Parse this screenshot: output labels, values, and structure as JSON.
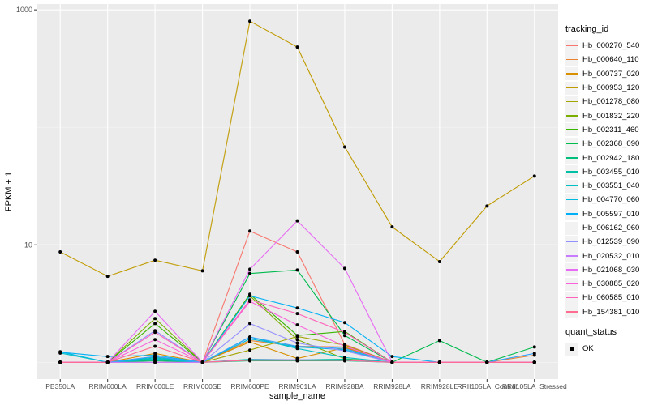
{
  "chart_data": {
    "type": "line",
    "xlabel": "sample_name",
    "ylabel": "FPKM + 1",
    "yscale": "log10",
    "ylim": [
      0.72,
      1120
    ],
    "yticks": [
      10,
      1000
    ],
    "ytick_labels": [
      "10",
      "1000"
    ],
    "grid": true,
    "legend_placement": "right",
    "categories": [
      "PB350LA",
      "RRIM600LA",
      "RRIM600LE",
      "RRIM600SE",
      "RRIM600PE",
      "RRIM901LA",
      "RRIM928BA",
      "RRIM928LA",
      "RRIM928LE",
      "RRII105LA_Control",
      "RRII105LA_Stressed"
    ],
    "legend_title": "tracking_id",
    "series": [
      {
        "name": "Hb_000270_540",
        "color": "#F8766D",
        "values": [
          1,
          1,
          1,
          1,
          13.1,
          8.7,
          1.42,
          1,
          1,
          1,
          1
        ]
      },
      {
        "name": "Hb_000640_110",
        "color": "#EA8331",
        "values": [
          1,
          1,
          1.12,
          1,
          1.53,
          1.37,
          1.35,
          1,
          1,
          1,
          1.15
        ]
      },
      {
        "name": "Hb_000737_020",
        "color": "#D89000",
        "values": [
          1,
          1,
          1.19,
          1,
          1.49,
          1.08,
          1.33,
          1,
          1,
          1,
          1
        ]
      },
      {
        "name": "Hb_000953_120",
        "color": "#C09B00",
        "values": [
          8.7,
          5.4,
          7.4,
          6.0,
          800,
          482,
          68,
          14.2,
          7.2,
          21.4,
          38.5
        ]
      },
      {
        "name": "Hb_001278_080",
        "color": "#A3A500",
        "values": [
          1,
          1,
          1.05,
          1,
          1.27,
          1.66,
          1.4,
          1,
          1,
          1,
          1
        ]
      },
      {
        "name": "Hb_001832_220",
        "color": "#7CAE00",
        "values": [
          1,
          1,
          2.36,
          1,
          3.68,
          1.56,
          1.07,
          1,
          1,
          1,
          1
        ]
      },
      {
        "name": "Hb_002311_460",
        "color": "#39B600",
        "values": [
          1,
          1,
          2.14,
          1,
          3.8,
          1.69,
          1.83,
          1,
          1,
          1,
          1
        ]
      },
      {
        "name": "Hb_002368_090",
        "color": "#00BB4E",
        "values": [
          1,
          1,
          1.05,
          1,
          5.7,
          6.1,
          1.69,
          1,
          1.53,
          1,
          1.35
        ]
      },
      {
        "name": "Hb_002942_180",
        "color": "#00BF7D",
        "values": [
          1,
          1,
          1.03,
          1,
          1.03,
          1.03,
          1.03,
          1,
          1,
          1,
          1
        ]
      },
      {
        "name": "Hb_003455_010",
        "color": "#00C1A3",
        "values": [
          1,
          1,
          1.08,
          1,
          1.06,
          1.05,
          1.06,
          1,
          1,
          1,
          1
        ]
      },
      {
        "name": "Hb_003551_040",
        "color": "#00BFC4",
        "values": [
          1.2,
          1,
          1.1,
          1,
          1.64,
          1.31,
          1.1,
          1,
          1,
          1,
          1
        ]
      },
      {
        "name": "Hb_004770_060",
        "color": "#00BAE0",
        "values": [
          1.23,
          1,
          1.06,
          1,
          1.58,
          1.35,
          1.28,
          1,
          1,
          1,
          1
        ]
      },
      {
        "name": "Hb_005597_010",
        "color": "#00B0F6",
        "values": [
          1.22,
          1.12,
          1.15,
          1,
          3.68,
          2.9,
          2.18,
          1.12,
          1,
          1,
          1
        ]
      },
      {
        "name": "Hb_006162_060",
        "color": "#35A2FF",
        "values": [
          1,
          1,
          1.12,
          1,
          1.64,
          1.37,
          1.31,
          1,
          1,
          1,
          1.19
        ]
      },
      {
        "name": "Hb_012539_090",
        "color": "#9590FF",
        "values": [
          1,
          1,
          1.86,
          1,
          2.14,
          1.46,
          1.25,
          1,
          1,
          1,
          1
        ]
      },
      {
        "name": "Hb_020532_010",
        "color": "#C77CFF",
        "values": [
          1,
          1,
          1,
          1,
          1.05,
          1.05,
          1.04,
          1,
          1,
          1,
          1
        ]
      },
      {
        "name": "Hb_021068_030",
        "color": "#E76BF3",
        "values": [
          1,
          1,
          2.72,
          1,
          6.2,
          16.0,
          6.3,
          1,
          1,
          1,
          1
        ]
      },
      {
        "name": "Hb_030885_020",
        "color": "#FA62DB",
        "values": [
          1,
          1,
          1.56,
          1,
          3.3,
          2.08,
          1.37,
          1,
          1,
          1,
          1
        ]
      },
      {
        "name": "Hb_060585_010",
        "color": "#FF62BC",
        "values": [
          1,
          1,
          1.8,
          1,
          3.4,
          2.6,
          1.8,
          1,
          1,
          1,
          1
        ]
      },
      {
        "name": "Hb_154381_010",
        "color": "#FF6C91",
        "values": [
          1,
          1,
          1.37,
          1,
          1.04,
          1.04,
          1.04,
          1,
          1,
          1,
          1
        ]
      }
    ],
    "quant_status_title": "quant_status",
    "quant_status_items": [
      "OK"
    ]
  }
}
